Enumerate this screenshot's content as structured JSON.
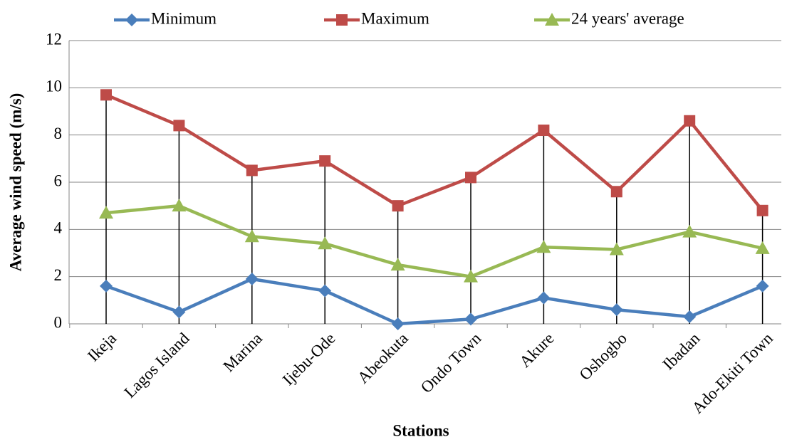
{
  "chart_data": {
    "type": "line",
    "x_label": "Stations",
    "y_label": "Average wind speed (m/s)",
    "categories": [
      "Ikeja",
      "Lagos Island",
      "Marina",
      "Ijebu-Ode",
      "Abeokuta",
      "Ondo Town",
      "Akure",
      "Oshogbo",
      "Ibadan",
      "Ado-Ekiti Town"
    ],
    "series": [
      {
        "name": "Minimum",
        "color": "#4a7ebb",
        "marker": "diamond",
        "values": [
          1.6,
          0.5,
          1.9,
          1.4,
          0.0,
          0.2,
          1.1,
          0.6,
          0.3,
          1.6
        ]
      },
      {
        "name": "Maximum",
        "color": "#be4b48",
        "marker": "square",
        "values": [
          9.7,
          8.4,
          6.5,
          6.9,
          5.0,
          6.2,
          8.2,
          5.6,
          8.6,
          4.8
        ]
      },
      {
        "name": "24 years' average",
        "color": "#98b954",
        "marker": "triangle",
        "values": [
          4.7,
          5.0,
          3.7,
          3.4,
          2.5,
          2.0,
          3.25,
          3.15,
          3.9,
          3.2
        ]
      }
    ],
    "drop_lines": true,
    "ylim": [
      0,
      12
    ],
    "yticks": [
      0,
      2,
      4,
      6,
      8,
      10,
      12
    ],
    "grid": true,
    "legend": "top"
  }
}
